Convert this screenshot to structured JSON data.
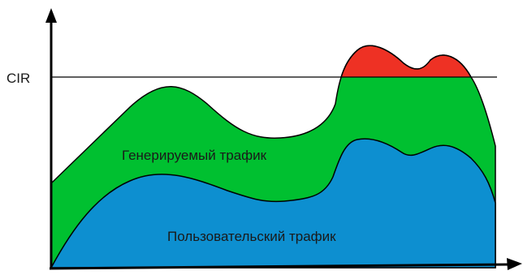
{
  "diagram": {
    "threshold_label": "CIR",
    "generated_label": "Генерируемый трафик",
    "user_label": "Пользовательский трафик",
    "colors": {
      "user_fill": "#0d8fd0",
      "generated_fill": "#00c030",
      "excess_fill": "#ee3124",
      "line": "#000000"
    }
  }
}
